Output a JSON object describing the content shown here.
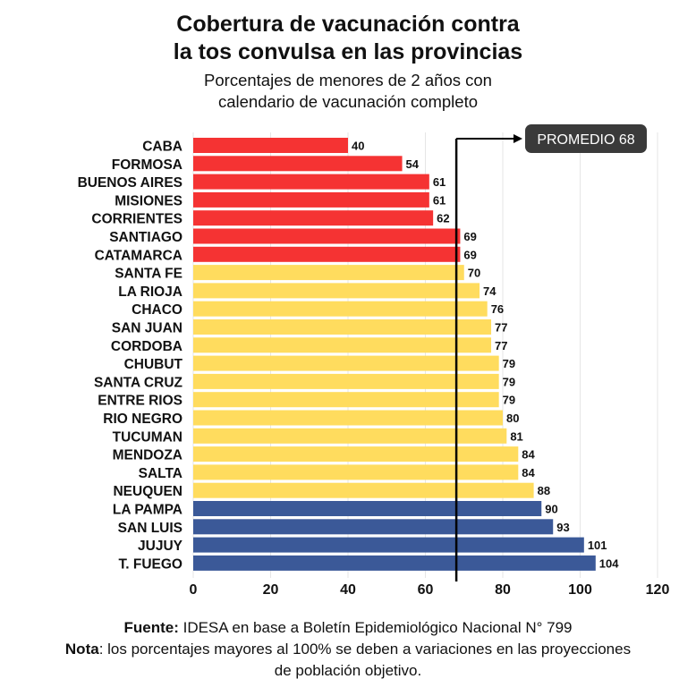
{
  "title_line1": "Cobertura de vacunación contra",
  "title_line2": "la tos convulsa en las provincias",
  "subtitle_line1": "Porcentajes de menores de 2 años con",
  "subtitle_line2": "calendario de vacunación completo",
  "footer": {
    "source_label": "Fuente:",
    "source_text": " IDESA en base a Boletín Epidemiológico Nacional N° 799",
    "note_label": "Nota",
    "note_text": ": los porcentajes mayores al 100% se deben a variaciones en las proyecciones de población objetivo."
  },
  "colors": {
    "red": "#f53333",
    "yellow": "#ffdc5e",
    "blue": "#3b5998",
    "callout_bg": "#3a3a3a",
    "callout_text": "#ffffff",
    "average_line": "#000000"
  },
  "chart_data": {
    "type": "bar",
    "orientation": "horizontal",
    "categories": [
      "CABA",
      "FORMOSA",
      "BUENOS AIRES",
      "MISIONES",
      "CORRIENTES",
      "SANTIAGO",
      "CATAMARCA",
      "SANTA FE",
      "LA RIOJA",
      "CHACO",
      "SAN JUAN",
      "CORDOBA",
      "CHUBUT",
      "SANTA CRUZ",
      "ENTRE RIOS",
      "RIO NEGRO",
      "TUCUMAN",
      "MENDOZA",
      "SALTA",
      "NEUQUEN",
      "LA PAMPA",
      "SAN LUIS",
      "JUJUY",
      "T. FUEGO"
    ],
    "values": [
      40,
      54,
      61,
      61,
      62,
      69,
      69,
      70,
      74,
      76,
      77,
      77,
      79,
      79,
      79,
      80,
      81,
      84,
      84,
      88,
      90,
      93,
      101,
      104
    ],
    "bar_colors": [
      "red",
      "red",
      "red",
      "red",
      "red",
      "red",
      "red",
      "yellow",
      "yellow",
      "yellow",
      "yellow",
      "yellow",
      "yellow",
      "yellow",
      "yellow",
      "yellow",
      "yellow",
      "yellow",
      "yellow",
      "yellow",
      "blue",
      "blue",
      "blue",
      "blue"
    ],
    "xlim": [
      0,
      120
    ],
    "xticks": [
      0,
      20,
      40,
      60,
      80,
      100,
      120
    ],
    "average": {
      "label": "PROMEDIO 68",
      "value": 68
    },
    "grid": true
  }
}
